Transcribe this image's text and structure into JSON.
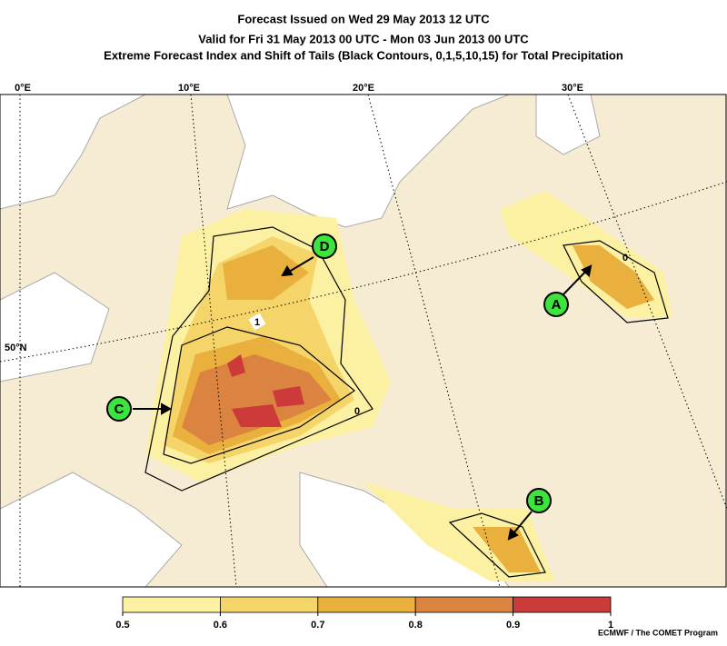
{
  "title_lines": [
    "Forecast Issued on Wed 29 May 2013 12 UTC",
    "Valid for Fri 31 May 2013 00 UTC - Mon 03 Jun 2013 00 UTC",
    "Extreme Forecast Index and Shift of Tails (Black Contours, 0,1,5,10,15) for Total Precipitation"
  ],
  "graticule": {
    "longitudes": [
      "0°E",
      "10°E",
      "20°E",
      "30°E"
    ],
    "latitudes": [
      "50°N"
    ]
  },
  "markers": [
    "A",
    "B",
    "C",
    "D"
  ],
  "contour_labels": [
    "1",
    "0",
    "0"
  ],
  "colorbar": {
    "ticks": [
      0.5,
      0.6,
      0.7,
      0.8,
      0.9,
      1
    ],
    "colors": [
      "#fcf0a2",
      "#f5d46a",
      "#e9b03e",
      "#db8441",
      "#cc3a3a"
    ]
  },
  "credit": "ECMWF / The COMET Program"
}
